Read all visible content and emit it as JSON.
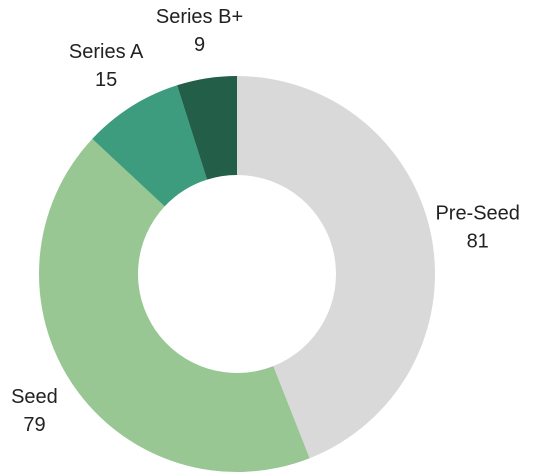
{
  "chart_data": {
    "type": "donut",
    "categories": [
      "Pre-Seed",
      "Seed",
      "Series A",
      "Series B+"
    ],
    "values": [
      81,
      79,
      15,
      9
    ],
    "colors": [
      "#d9d9d9",
      "#98c793",
      "#3e9c7e",
      "#225e48"
    ]
  }
}
